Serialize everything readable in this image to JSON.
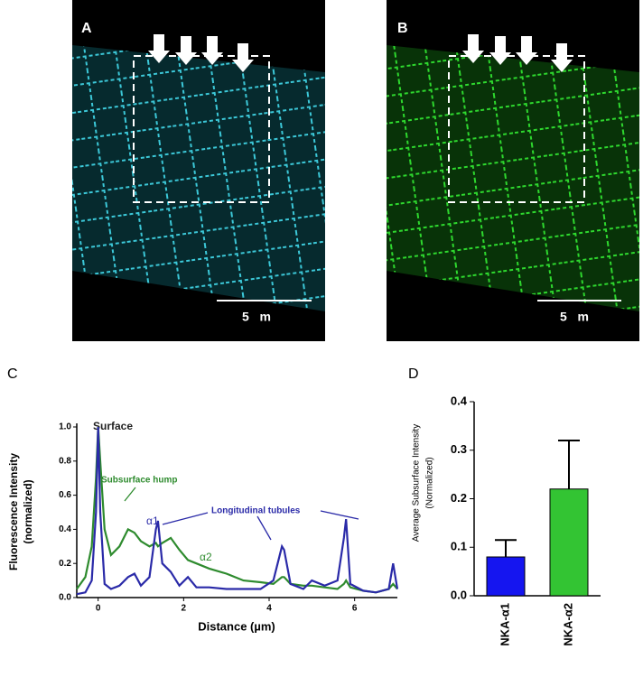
{
  "panels": [
    {
      "label": "A",
      "scale_bar": "5   m"
    },
    {
      "label": "B",
      "scale_bar": "5   m"
    }
  ],
  "chart_data": [
    {
      "type": "line",
      "panel_label": "C",
      "y_label": [
        "Fluorescence  Intensity",
        "(normalized)"
      ],
      "x_label": "Distance (µm)",
      "annotations": [
        "Surface",
        "Subsurface hump",
        "Longitudinal tubules"
      ],
      "x": [
        -0.5,
        -0.3,
        -0.15,
        -0.05,
        0,
        0.05,
        0.15,
        0.3,
        0.5,
        0.7,
        0.85,
        1.0,
        1.2,
        1.35,
        1.4,
        1.5,
        1.7,
        1.9,
        2.1,
        2.3,
        2.6,
        3.0,
        3.4,
        3.8,
        4.1,
        4.3,
        4.35,
        4.5,
        4.8,
        5.0,
        5.3,
        5.6,
        5.75,
        5.8,
        5.9,
        6.2,
        6.5,
        6.8,
        6.9,
        7.0
      ],
      "series": [
        {
          "name": "α1",
          "color": "#2a2aa8",
          "values": [
            0.02,
            0.03,
            0.1,
            0.5,
            1.0,
            0.5,
            0.08,
            0.05,
            0.07,
            0.12,
            0.14,
            0.07,
            0.12,
            0.4,
            0.45,
            0.2,
            0.15,
            0.07,
            0.12,
            0.06,
            0.06,
            0.05,
            0.05,
            0.05,
            0.1,
            0.3,
            0.28,
            0.08,
            0.05,
            0.1,
            0.07,
            0.1,
            0.35,
            0.46,
            0.08,
            0.04,
            0.03,
            0.05,
            0.2,
            0.05
          ]
        },
        {
          "name": "α2",
          "color": "#2e8b2e",
          "values": [
            0.05,
            0.12,
            0.3,
            0.7,
            1.0,
            0.8,
            0.4,
            0.25,
            0.3,
            0.4,
            0.38,
            0.33,
            0.3,
            0.32,
            0.3,
            0.32,
            0.35,
            0.28,
            0.22,
            0.2,
            0.17,
            0.14,
            0.1,
            0.09,
            0.08,
            0.12,
            0.12,
            0.08,
            0.07,
            0.07,
            0.06,
            0.05,
            0.08,
            0.1,
            0.06,
            0.04,
            0.03,
            0.05,
            0.08,
            0.05
          ]
        }
      ],
      "xlim": [
        -0.5,
        7
      ],
      "xticks": [
        0,
        2,
        4,
        6
      ],
      "ylim": [
        0,
        1
      ],
      "yticks": [
        {
          "value": 0,
          "label": "0.0"
        },
        0.2,
        0.4,
        0.6,
        0.8,
        {
          "value": 1,
          "label": "1.0"
        }
      ]
    },
    {
      "type": "bar",
      "panel_label": "D",
      "y_label": [
        "Average  Subsurface  Intensity",
        "(Normalized)"
      ],
      "categories": [
        "NKA-α1",
        "NKA-α2"
      ],
      "values": [
        0.08,
        0.22
      ],
      "errors": [
        0.035,
        0.1
      ],
      "colors": [
        "#1515f0",
        "#33c433"
      ],
      "ylim": [
        0,
        0.4
      ],
      "yticks": [
        {
          "value": 0,
          "label": "0.0"
        },
        0.1,
        0.2,
        0.3,
        0.4
      ]
    }
  ]
}
